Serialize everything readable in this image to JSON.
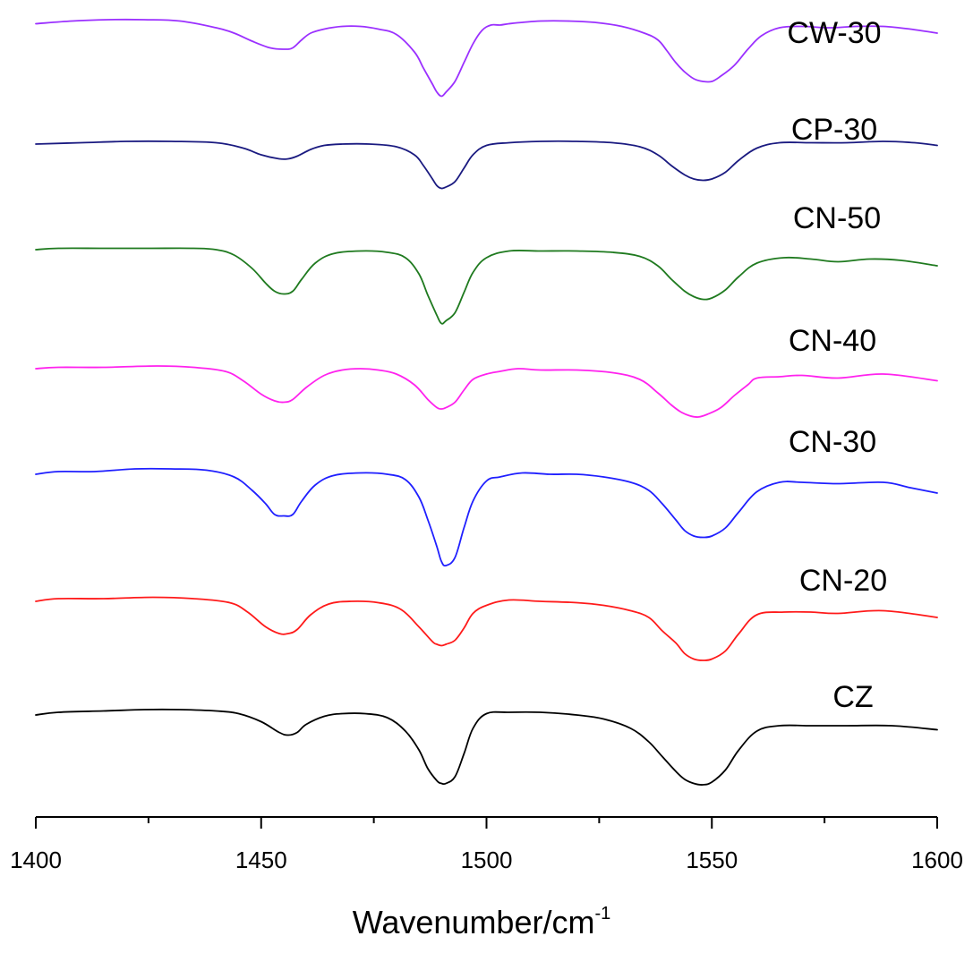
{
  "chart_data": {
    "type": "line",
    "title": "",
    "xlabel": "Wavenumber/cm",
    "xlabel_superscript": "-1",
    "ylabel": "",
    "xlim": [
      1400,
      1600
    ],
    "x_ticks": [
      "1400",
      "1450",
      "1500",
      "1550",
      "1600"
    ],
    "y_ticks": [],
    "grid": false,
    "legend": "inline labels at right end of each curve",
    "series": [
      {
        "name": "CW-30",
        "color": "#9B30FF",
        "offset": 6,
        "x": [
          1400,
          1408,
          1416,
          1424,
          1432,
          1440,
          1444,
          1448,
          1452,
          1455,
          1457,
          1459,
          1461,
          1464,
          1468,
          1472,
          1476,
          1480,
          1484,
          1486,
          1488,
          1489,
          1490,
          1491,
          1493,
          1495,
          1497,
          1499,
          1501,
          1503,
          1505,
          1508,
          1512,
          1518,
          1524,
          1530,
          1535,
          1538,
          1540,
          1542,
          1544,
          1546,
          1548,
          1550,
          1552,
          1555,
          1558,
          1561,
          1565,
          1570,
          1576,
          1582,
          1588,
          1594,
          1600
        ],
        "y": [
          0.81,
          0.83,
          0.84,
          0.84,
          0.83,
          0.78,
          0.74,
          0.68,
          0.63,
          0.62,
          0.63,
          0.69,
          0.74,
          0.77,
          0.79,
          0.79,
          0.77,
          0.73,
          0.6,
          0.48,
          0.36,
          0.3,
          0.27,
          0.3,
          0.38,
          0.52,
          0.66,
          0.76,
          0.8,
          0.8,
          0.81,
          0.82,
          0.83,
          0.83,
          0.82,
          0.79,
          0.74,
          0.69,
          0.61,
          0.52,
          0.45,
          0.4,
          0.38,
          0.38,
          0.42,
          0.5,
          0.62,
          0.72,
          0.78,
          0.79,
          0.78,
          0.79,
          0.79,
          0.77,
          0.74
        ]
      },
      {
        "name": "CP-30",
        "color": "#1A1A80",
        "offset": 5,
        "x": [
          1400,
          1410,
          1420,
          1430,
          1440,
          1446,
          1450,
          1454,
          1456,
          1458,
          1461,
          1464,
          1468,
          1474,
          1480,
          1484,
          1486,
          1488,
          1489,
          1490,
          1491,
          1493,
          1495,
          1497,
          1500,
          1505,
          1512,
          1520,
          1528,
          1534,
          1538,
          1541,
          1544,
          1546,
          1548,
          1550,
          1553,
          1556,
          1560,
          1565,
          1572,
          1580,
          1588,
          1595,
          1600
        ],
        "y": [
          0.78,
          0.79,
          0.8,
          0.8,
          0.79,
          0.75,
          0.7,
          0.67,
          0.67,
          0.69,
          0.74,
          0.77,
          0.78,
          0.78,
          0.76,
          0.7,
          0.62,
          0.52,
          0.47,
          0.45,
          0.46,
          0.5,
          0.6,
          0.7,
          0.77,
          0.79,
          0.8,
          0.8,
          0.79,
          0.76,
          0.7,
          0.62,
          0.55,
          0.52,
          0.51,
          0.52,
          0.57,
          0.66,
          0.75,
          0.79,
          0.79,
          0.79,
          0.8,
          0.79,
          0.77
        ]
      },
      {
        "name": "CN-50",
        "color": "#1F7A1F",
        "offset": 4,
        "x": [
          1400,
          1405,
          1415,
          1425,
          1435,
          1440,
          1444,
          1448,
          1451,
          1453,
          1455,
          1457,
          1459,
          1462,
          1466,
          1472,
          1478,
          1482,
          1485,
          1487,
          1489,
          1490,
          1491,
          1493,
          1495,
          1497,
          1500,
          1505,
          1512,
          1520,
          1528,
          1534,
          1538,
          1541,
          1544,
          1546,
          1548,
          1550,
          1553,
          1556,
          1560,
          1566,
          1572,
          1578,
          1585,
          1592,
          1600
        ],
        "y": [
          0.86,
          0.87,
          0.87,
          0.87,
          0.87,
          0.86,
          0.82,
          0.72,
          0.61,
          0.55,
          0.53,
          0.55,
          0.64,
          0.76,
          0.83,
          0.85,
          0.84,
          0.8,
          0.68,
          0.52,
          0.37,
          0.31,
          0.33,
          0.39,
          0.54,
          0.69,
          0.8,
          0.85,
          0.85,
          0.85,
          0.84,
          0.81,
          0.74,
          0.64,
          0.55,
          0.51,
          0.49,
          0.5,
          0.56,
          0.66,
          0.76,
          0.8,
          0.79,
          0.77,
          0.79,
          0.78,
          0.74
        ]
      },
      {
        "name": "CN-40",
        "color": "#FF22EE",
        "offset": 3,
        "x": [
          1400,
          1405,
          1415,
          1427,
          1435,
          1442,
          1446,
          1450,
          1453,
          1455,
          1457,
          1460,
          1464,
          1468,
          1472,
          1476,
          1480,
          1484,
          1487,
          1489,
          1490,
          1491,
          1493,
          1495,
          1497,
          1500,
          1503,
          1507,
          1512,
          1520,
          1528,
          1534,
          1538,
          1541,
          1543,
          1545,
          1547,
          1549,
          1552,
          1555,
          1558,
          1560,
          1565,
          1570,
          1578,
          1588,
          1600
        ],
        "y": [
          0.84,
          0.85,
          0.85,
          0.86,
          0.85,
          0.82,
          0.75,
          0.65,
          0.6,
          0.59,
          0.61,
          0.7,
          0.79,
          0.83,
          0.84,
          0.83,
          0.8,
          0.72,
          0.61,
          0.55,
          0.54,
          0.55,
          0.59,
          0.68,
          0.76,
          0.8,
          0.82,
          0.84,
          0.83,
          0.83,
          0.81,
          0.76,
          0.66,
          0.57,
          0.52,
          0.49,
          0.48,
          0.5,
          0.55,
          0.64,
          0.72,
          0.77,
          0.78,
          0.79,
          0.77,
          0.8,
          0.75
        ]
      },
      {
        "name": "CN-30",
        "color": "#1F1FFF",
        "offset": 2,
        "x": [
          1400,
          1405,
          1413,
          1422,
          1430,
          1438,
          1444,
          1448,
          1451,
          1453,
          1455,
          1457,
          1459,
          1462,
          1466,
          1472,
          1478,
          1482,
          1485,
          1487,
          1489,
          1490,
          1491,
          1493,
          1495,
          1497,
          1500,
          1503,
          1508,
          1514,
          1520,
          1526,
          1532,
          1536,
          1539,
          1542,
          1544,
          1546,
          1548,
          1550,
          1553,
          1556,
          1560,
          1565,
          1570,
          1578,
          1588,
          1594,
          1600
        ],
        "y": [
          0.92,
          0.94,
          0.94,
          0.96,
          0.96,
          0.95,
          0.9,
          0.8,
          0.7,
          0.62,
          0.61,
          0.62,
          0.72,
          0.84,
          0.91,
          0.93,
          0.92,
          0.88,
          0.75,
          0.58,
          0.38,
          0.27,
          0.24,
          0.3,
          0.52,
          0.72,
          0.87,
          0.9,
          0.93,
          0.92,
          0.92,
          0.9,
          0.86,
          0.8,
          0.7,
          0.58,
          0.5,
          0.46,
          0.45,
          0.46,
          0.52,
          0.64,
          0.79,
          0.86,
          0.86,
          0.85,
          0.86,
          0.82,
          0.78
        ]
      },
      {
        "name": "CN-20",
        "color": "#FF1A1A",
        "offset": 1,
        "x": [
          1400,
          1405,
          1415,
          1426,
          1435,
          1443,
          1447,
          1451,
          1454,
          1456,
          1458,
          1461,
          1465,
          1470,
          1476,
          1481,
          1485,
          1488,
          1489,
          1490,
          1491,
          1493,
          1495,
          1497,
          1500,
          1505,
          1512,
          1520,
          1526,
          1532,
          1536,
          1539,
          1542,
          1544,
          1546,
          1548,
          1550,
          1553,
          1556,
          1560,
          1566,
          1572,
          1578,
          1588,
          1600
        ],
        "y": [
          0.84,
          0.86,
          0.86,
          0.87,
          0.86,
          0.83,
          0.76,
          0.65,
          0.6,
          0.6,
          0.63,
          0.74,
          0.82,
          0.84,
          0.83,
          0.78,
          0.65,
          0.54,
          0.52,
          0.51,
          0.52,
          0.55,
          0.64,
          0.75,
          0.81,
          0.85,
          0.84,
          0.83,
          0.81,
          0.77,
          0.72,
          0.62,
          0.53,
          0.45,
          0.41,
          0.4,
          0.41,
          0.47,
          0.6,
          0.74,
          0.76,
          0.76,
          0.75,
          0.77,
          0.72
        ]
      },
      {
        "name": "CZ",
        "color": "#000000",
        "offset": 0,
        "x": [
          1400,
          1405,
          1415,
          1424,
          1432,
          1440,
          1445,
          1450,
          1454,
          1456,
          1458,
          1460,
          1464,
          1468,
          1473,
          1478,
          1482,
          1485,
          1487,
          1489,
          1490,
          1491,
          1493,
          1495,
          1497,
          1500,
          1505,
          1512,
          1520,
          1526,
          1532,
          1536,
          1539,
          1542,
          1544,
          1546,
          1548,
          1550,
          1553,
          1556,
          1560,
          1565,
          1572,
          1580,
          1590,
          1600
        ],
        "y": [
          0.86,
          0.88,
          0.89,
          0.9,
          0.9,
          0.89,
          0.87,
          0.81,
          0.73,
          0.71,
          0.73,
          0.79,
          0.85,
          0.87,
          0.87,
          0.84,
          0.74,
          0.6,
          0.46,
          0.37,
          0.35,
          0.35,
          0.4,
          0.57,
          0.76,
          0.87,
          0.88,
          0.88,
          0.86,
          0.83,
          0.76,
          0.66,
          0.55,
          0.44,
          0.38,
          0.35,
          0.34,
          0.36,
          0.45,
          0.6,
          0.74,
          0.78,
          0.78,
          0.78,
          0.78,
          0.75
        ]
      }
    ]
  }
}
